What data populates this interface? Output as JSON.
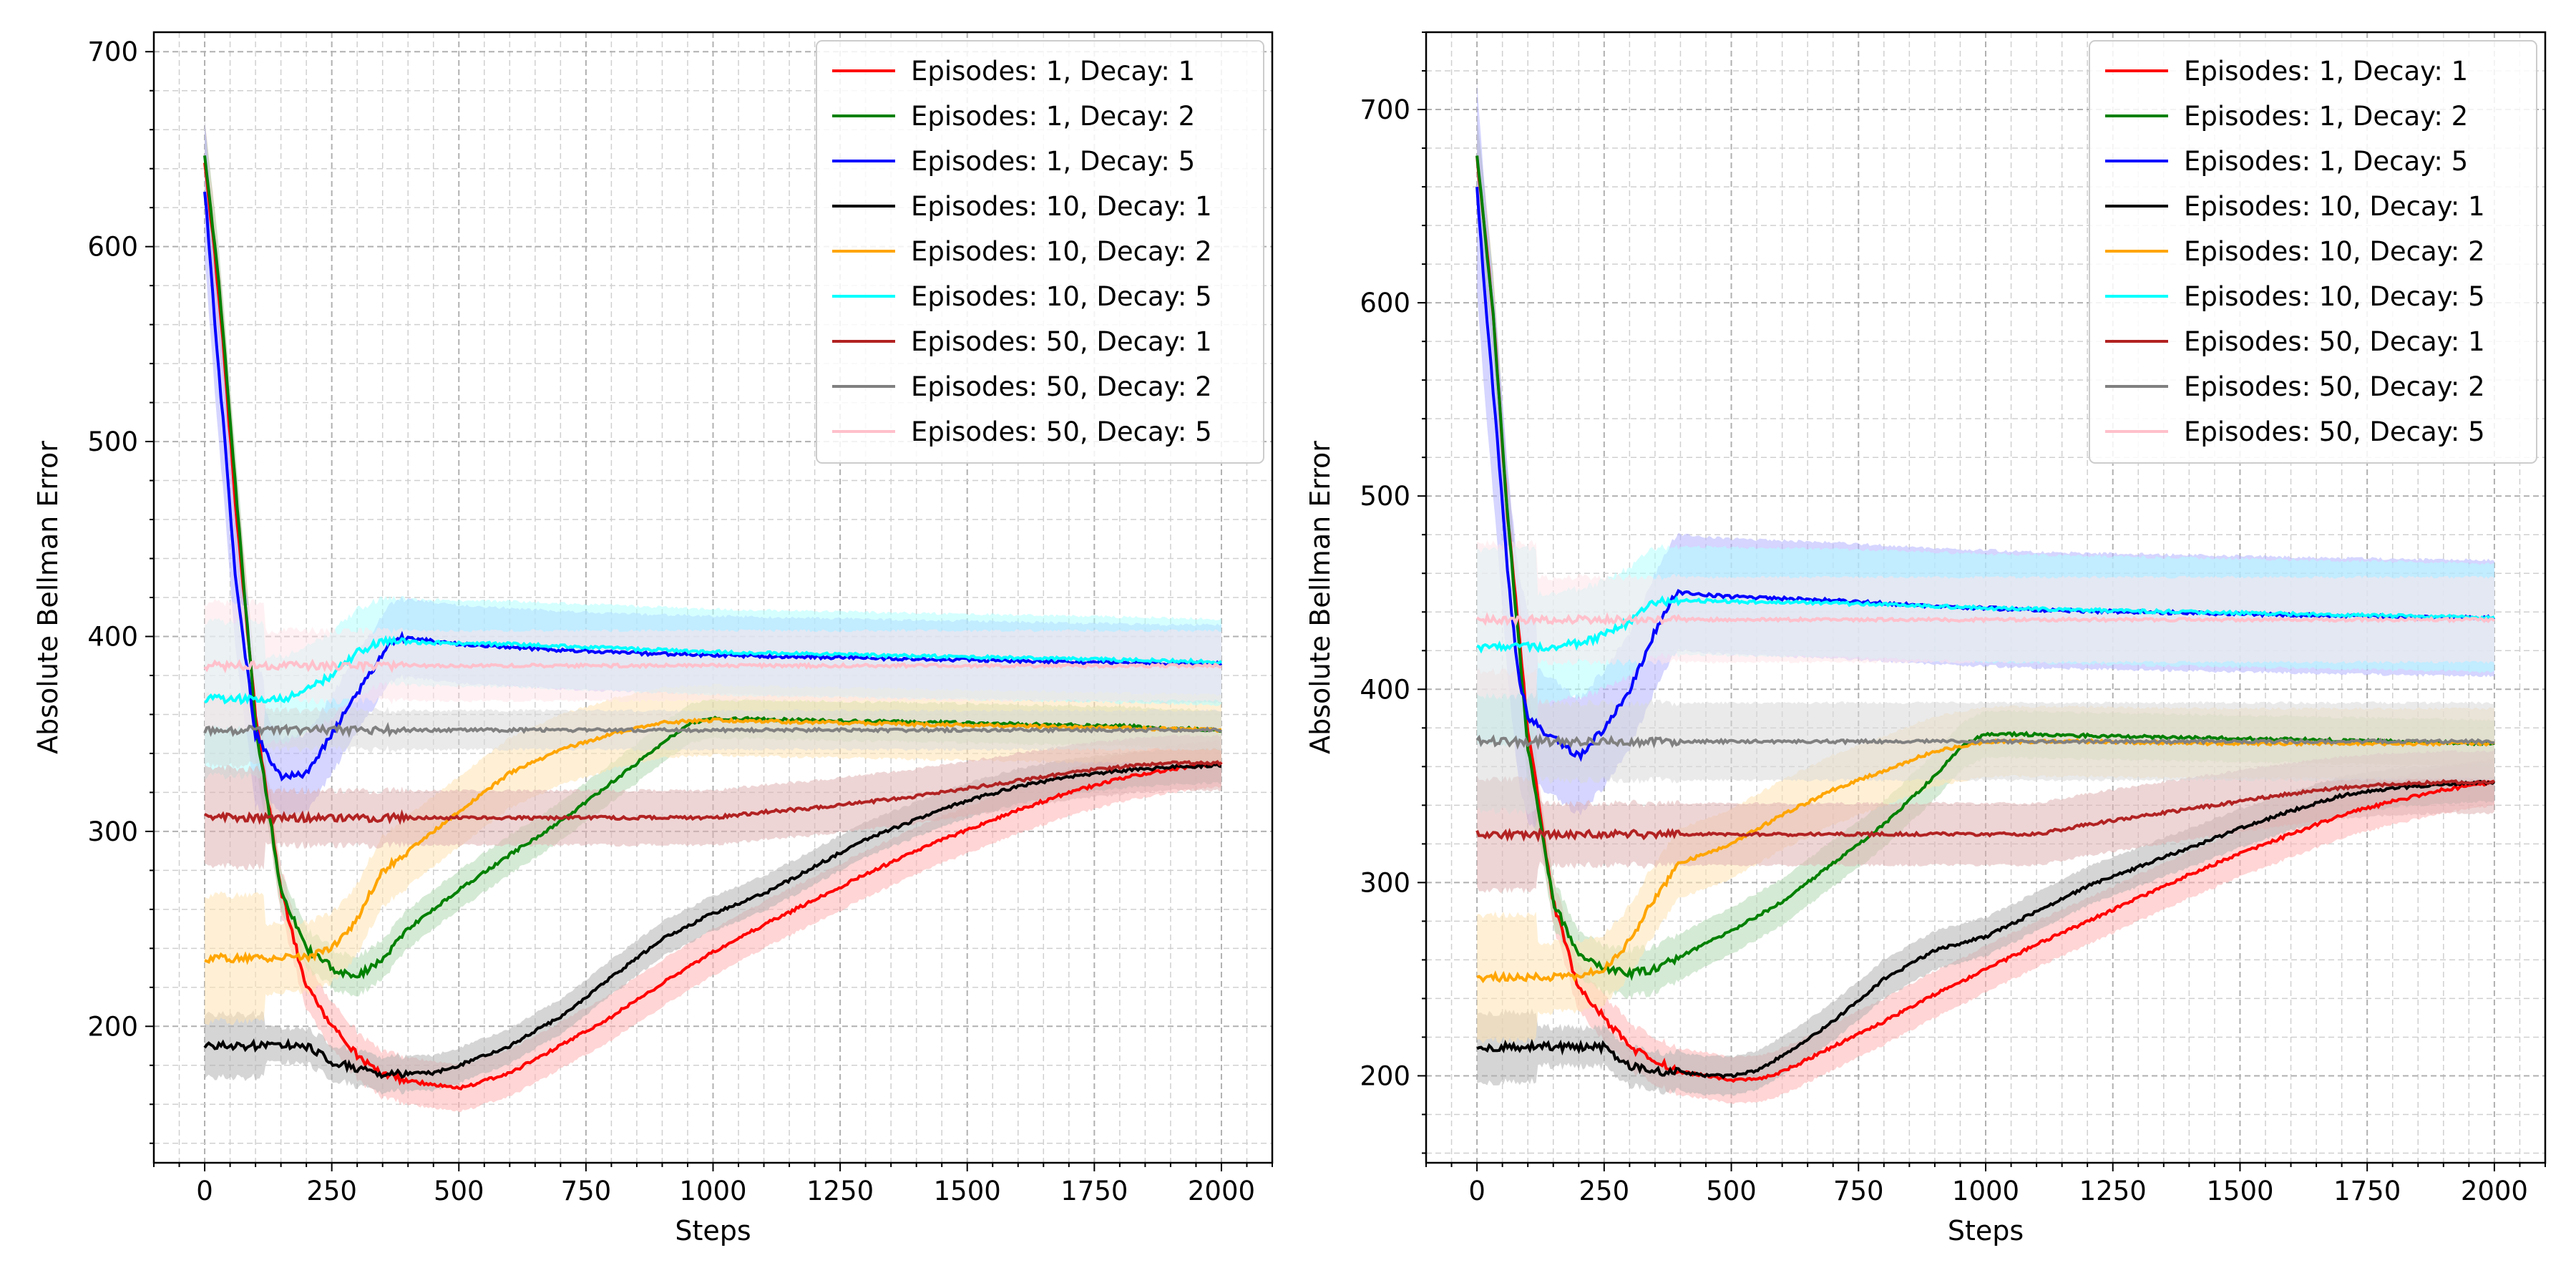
{
  "legend_placement": "top-right",
  "grid": true,
  "series_styles": [
    {
      "name": "Episodes: 1, Decay: 1",
      "color": "#ff0000",
      "band": "#ffb3b3"
    },
    {
      "name": "Episodes: 1, Decay: 2",
      "color": "#008000",
      "band": "#b3d9b3"
    },
    {
      "name": "Episodes: 1, Decay: 5",
      "color": "#0000ff",
      "band": "#b3b3ff"
    },
    {
      "name": "Episodes: 10, Decay: 1",
      "color": "#000000",
      "band": "#b3b3b3"
    },
    {
      "name": "Episodes: 10, Decay: 2",
      "color": "#ffa500",
      "band": "#ffe4b3"
    },
    {
      "name": "Episodes: 10, Decay: 5",
      "color": "#00ffff",
      "band": "#b3ffff"
    },
    {
      "name": "Episodes: 50, Decay: 1",
      "color": "#b22222",
      "band": "#e0b3b3"
    },
    {
      "name": "Episodes: 50, Decay: 2",
      "color": "#808080",
      "band": "#d9d9d9"
    },
    {
      "name": "Episodes: 50, Decay: 5",
      "color": "#ffc0cb",
      "band": "#ffe6ea"
    }
  ],
  "chart_data": [
    {
      "type": "line",
      "title": "",
      "xlabel": "Steps",
      "ylabel": "Absolute Bellman Error",
      "xlim": [
        -100,
        2100
      ],
      "ylim": [
        130,
        710
      ],
      "xticks": [
        0,
        250,
        500,
        750,
        1000,
        1250,
        1500,
        1750,
        2000
      ],
      "yticks": [
        200,
        300,
        400,
        500,
        600,
        700
      ],
      "series": [
        {
          "name": "Episodes: 1, Decay: 1",
          "x": [
            0,
            30,
            60,
            100,
            150,
            200,
            250,
            300,
            350,
            400,
            450,
            500,
            550,
            600,
            700,
            800,
            900,
            1000,
            1100,
            1200,
            1300,
            1400,
            1500,
            1600,
            1700,
            1800,
            1900,
            2000
          ],
          "y": [
            645,
            570,
            470,
            360,
            270,
            220,
            200,
            185,
            175,
            172,
            170,
            168,
            172,
            176,
            190,
            205,
            222,
            238,
            252,
            265,
            278,
            290,
            301,
            311,
            320,
            327,
            332,
            335
          ],
          "band": 12
        },
        {
          "name": "Episodes: 1, Decay: 2",
          "x": [
            0,
            30,
            60,
            100,
            150,
            200,
            250,
            300,
            350,
            400,
            500,
            600,
            700,
            800,
            900,
            950,
            1000,
            1200,
            1400,
            1600,
            1800,
            2000
          ],
          "y": [
            648,
            575,
            480,
            355,
            270,
            240,
            230,
            225,
            235,
            250,
            270,
            288,
            305,
            325,
            345,
            355,
            358,
            357,
            356,
            355,
            354,
            352
          ],
          "band": 10
        },
        {
          "name": "Episodes: 1, Decay: 5",
          "x": [
            0,
            20,
            40,
            60,
            80,
            100,
            150,
            200,
            250,
            300,
            350,
            380,
            400,
            500,
            700,
            900,
            1100,
            1300,
            1500,
            1700,
            1900,
            2000
          ],
          "y": [
            630,
            560,
            500,
            430,
            390,
            350,
            328,
            330,
            350,
            370,
            392,
            400,
            399,
            396,
            393,
            391,
            390,
            389,
            388,
            387,
            386,
            386
          ],
          "band": 20
        },
        {
          "name": "Episodes: 10, Decay: 1",
          "x": [
            0,
            100,
            200,
            250,
            300,
            350,
            400,
            450,
            500,
            550,
            600,
            700,
            800,
            900,
            1000,
            1100,
            1200,
            1300,
            1400,
            1500,
            1600,
            1700,
            1800,
            1900,
            2000
          ],
          "y": [
            190,
            190,
            190,
            182,
            178,
            175,
            176,
            176,
            180,
            185,
            190,
            205,
            225,
            245,
            258,
            268,
            282,
            296,
            306,
            316,
            323,
            328,
            331,
            333,
            334
          ],
          "band": 9
        },
        {
          "name": "Episodes: 10, Decay: 2",
          "x": [
            0,
            100,
            200,
            250,
            300,
            350,
            400,
            500,
            600,
            700,
            800,
            900,
            1000,
            1200,
            1400,
            1600,
            1800,
            2000
          ],
          "y": [
            235,
            235,
            235,
            240,
            255,
            280,
            290,
            310,
            330,
            342,
            350,
            356,
            357,
            356,
            355,
            354,
            353,
            352
          ],
          "band": 18
        },
        {
          "name": "Episodes: 10, Decay: 5",
          "x": [
            0,
            100,
            150,
            200,
            250,
            300,
            350,
            400,
            600,
            800,
            1000,
            1200,
            1400,
            1600,
            1800,
            2000
          ],
          "y": [
            368,
            368,
            368,
            372,
            380,
            392,
            398,
            397,
            396,
            394,
            392,
            391,
            390,
            389,
            388,
            387
          ],
          "band": 22
        },
        {
          "name": "Episodes: 50, Decay: 1",
          "x": [
            0,
            300,
            600,
            900,
            1000,
            1100,
            1200,
            1300,
            1400,
            1500,
            1600,
            1700,
            1800,
            1900,
            2000
          ],
          "y": [
            307,
            307,
            307,
            307,
            307,
            310,
            312,
            315,
            318,
            322,
            326,
            330,
            333,
            335,
            335
          ],
          "band": 14
        },
        {
          "name": "Episodes: 50, Decay: 2",
          "x": [
            0,
            500,
            1000,
            1500,
            2000
          ],
          "y": [
            352,
            352,
            352,
            352,
            352
          ],
          "band": 10
        },
        {
          "name": "Episodes: 50, Decay: 5",
          "x": [
            0,
            500,
            1000,
            1500,
            2000
          ],
          "y": [
            385,
            385,
            385,
            385,
            385
          ],
          "band": 18
        }
      ]
    },
    {
      "type": "line",
      "title": "",
      "xlabel": "Steps",
      "ylabel": "Absolute Bellman Error",
      "xlim": [
        -100,
        2100
      ],
      "ylim": [
        155,
        740
      ],
      "xticks": [
        0,
        250,
        500,
        750,
        1000,
        1250,
        1500,
        1750,
        2000
      ],
      "yticks": [
        200,
        300,
        400,
        500,
        600,
        700
      ],
      "series": [
        {
          "name": "Episodes: 1, Decay: 1",
          "x": [
            0,
            30,
            60,
            100,
            150,
            200,
            250,
            300,
            350,
            400,
            450,
            500,
            550,
            600,
            700,
            800,
            900,
            1000,
            1100,
            1200,
            1300,
            1400,
            1500,
            1600,
            1700,
            1800,
            1900,
            2000
          ],
          "y": [
            675,
            600,
            490,
            380,
            290,
            245,
            230,
            215,
            208,
            202,
            200,
            198,
            198,
            202,
            215,
            228,
            242,
            255,
            268,
            280,
            292,
            304,
            315,
            325,
            335,
            342,
            348,
            352
          ],
          "band": 12
        },
        {
          "name": "Episodes: 1, Decay: 2",
          "x": [
            0,
            30,
            60,
            100,
            150,
            200,
            250,
            300,
            350,
            400,
            500,
            600,
            700,
            800,
            900,
            950,
            1000,
            1200,
            1400,
            1600,
            1800,
            2000
          ],
          "y": [
            675,
            600,
            490,
            370,
            290,
            262,
            255,
            253,
            255,
            262,
            275,
            290,
            310,
            330,
            355,
            370,
            377,
            376,
            375,
            374,
            373,
            372
          ],
          "band": 12
        },
        {
          "name": "Episodes: 1, Decay: 5",
          "x": [
            0,
            20,
            40,
            60,
            80,
            100,
            150,
            200,
            250,
            300,
            350,
            380,
            400,
            500,
            700,
            900,
            1100,
            1300,
            1500,
            1700,
            1900,
            2000
          ],
          "y": [
            660,
            590,
            530,
            460,
            410,
            385,
            375,
            365,
            380,
            400,
            430,
            445,
            450,
            448,
            446,
            443,
            441,
            440,
            439,
            438,
            437,
            437
          ],
          "band": 30
        },
        {
          "name": "Episodes: 10, Decay: 1",
          "x": [
            0,
            100,
            200,
            250,
            300,
            350,
            400,
            450,
            500,
            550,
            600,
            700,
            800,
            900,
            1000,
            1100,
            1200,
            1300,
            1400,
            1500,
            1600,
            1700,
            1800,
            1900,
            2000
          ],
          "y": [
            215,
            215,
            215,
            215,
            205,
            202,
            202,
            200,
            200,
            203,
            210,
            228,
            250,
            265,
            272,
            285,
            298,
            308,
            318,
            328,
            337,
            345,
            349,
            351,
            352
          ],
          "band": 10
        },
        {
          "name": "Episodes: 10, Decay: 2",
          "x": [
            0,
            100,
            200,
            250,
            300,
            350,
            400,
            500,
            600,
            700,
            800,
            900,
            1000,
            1200,
            1400,
            1600,
            1800,
            2000
          ],
          "y": [
            251,
            251,
            251,
            255,
            270,
            292,
            310,
            320,
            335,
            348,
            358,
            368,
            373,
            373,
            372,
            372,
            372,
            372
          ],
          "band": 18
        },
        {
          "name": "Episodes: 10, Decay: 5",
          "x": [
            0,
            100,
            150,
            200,
            250,
            300,
            350,
            400,
            600,
            800,
            1000,
            1200,
            1400,
            1600,
            1800,
            2000
          ],
          "y": [
            422,
            422,
            422,
            424,
            428,
            435,
            445,
            446,
            445,
            444,
            442,
            441,
            440,
            439,
            438,
            437
          ],
          "band": 28
        },
        {
          "name": "Episodes: 50, Decay: 1",
          "x": [
            0,
            300,
            600,
            900,
            1000,
            1100,
            1200,
            1300,
            1400,
            1500,
            1600,
            1700,
            1800,
            1900,
            2000
          ],
          "y": [
            325,
            325,
            325,
            325,
            325,
            325,
            330,
            334,
            338,
            342,
            346,
            349,
            351,
            352,
            352
          ],
          "band": 16
        },
        {
          "name": "Episodes: 50, Decay: 2",
          "x": [
            0,
            500,
            1000,
            1500,
            2000
          ],
          "y": [
            373,
            373,
            373,
            373,
            373
          ],
          "band": 20
        },
        {
          "name": "Episodes: 50, Decay: 5",
          "x": [
            0,
            500,
            1000,
            1500,
            2000
          ],
          "y": [
            436,
            436,
            436,
            436,
            436
          ],
          "band": 22
        }
      ]
    }
  ]
}
